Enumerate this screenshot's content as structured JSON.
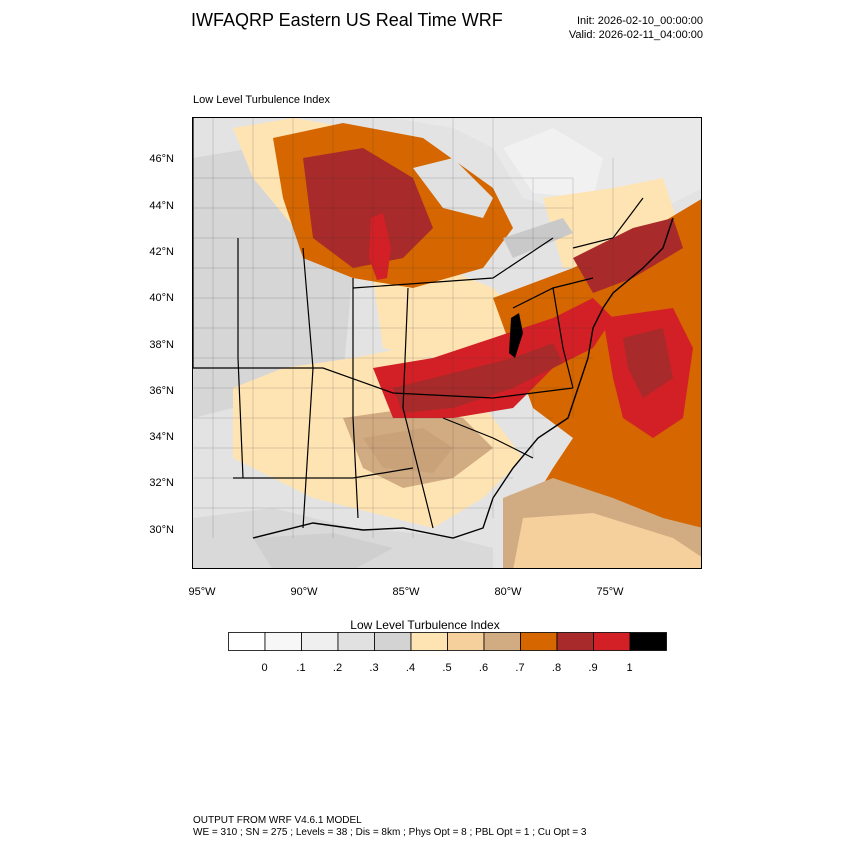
{
  "header": {
    "title": "IWFAQRP Eastern US Real Time WRF",
    "init": "Init: 2026-02-10_00:00:00",
    "valid": "Valid: 2026-02-11_04:00:00"
  },
  "plot": {
    "title": "Low Level Turbulence Index",
    "lat_labels": [
      "46°N",
      "44°N",
      "42°N",
      "40°N",
      "38°N",
      "36°N",
      "34°N",
      "32°N",
      "30°N"
    ],
    "lon_labels": [
      "95°W",
      "90°W",
      "85°W",
      "80°W",
      "75°W"
    ]
  },
  "colorbar": {
    "title": "Low Level Turbulence Index",
    "labels": [
      "0",
      ".1",
      ".2",
      ".3",
      ".4",
      ".5",
      ".6",
      ".7",
      ".8",
      ".9",
      "1"
    ],
    "colors": [
      "#ffffff",
      "#f7f7f7",
      "#efefef",
      "#e1e1e1",
      "#d3d3d3",
      "#ffe4b3",
      "#f5cf9c",
      "#d1ab82",
      "#d56600",
      "#a82a2a",
      "#d32026",
      "#000000"
    ]
  },
  "footer": {
    "line1": "OUTPUT FROM WRF V4.6.1 MODEL",
    "line2": "WE = 310 ; SN = 275 ; Levels = 38 ; Dis = 8km ; Phys Opt = 8 ; PBL Opt = 1 ; Cu Opt = 3"
  }
}
